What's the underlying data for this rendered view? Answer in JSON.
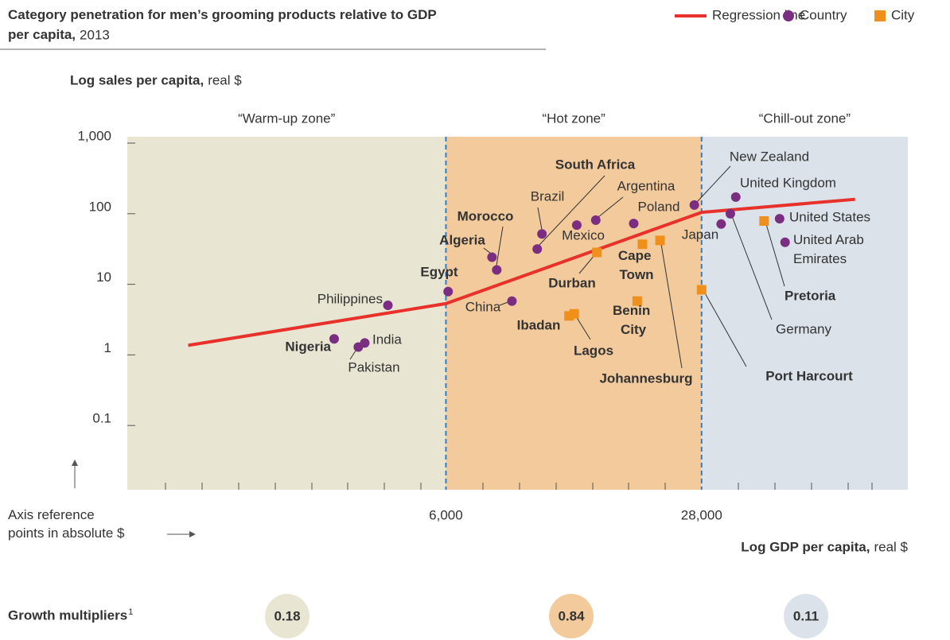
{
  "chart_data": {
    "type": "scatter",
    "title": "Category penetration for men’s grooming products relative to GDP per capita,",
    "subtitle": "2013",
    "y_label": "Log sales per capita,",
    "y_label_unit": "real $",
    "x_label": "Log GDP per capita,",
    "x_label_unit": "real $",
    "x_reference_label": "Axis reference points in absolute $",
    "x_log": true,
    "y_log": true,
    "xlim": [
      880,
      97000
    ],
    "ylim": [
      0.01,
      1000
    ],
    "xticks": [
      {
        "value": 6000,
        "label": "6,000"
      },
      {
        "value": 28000,
        "label": "28,000"
      }
    ],
    "yticks": [
      0.1,
      1,
      10,
      100,
      {
        "value": 1000,
        "label": "1,000"
      }
    ],
    "zones": [
      {
        "label": "“Warm-up zone”",
        "color": "#e9e5d3"
      },
      {
        "label": "“Hot zone”",
        "color": "#f2ca9c"
      },
      {
        "label": "“Chill-out zone”",
        "color": "#dbe2ea"
      }
    ],
    "boundary_color": "#3a7cc3",
    "growth_multipliers": {
      "label": "Growth multipliers",
      "footnote": "1",
      "values": [
        "0.18",
        "0.84",
        "0.11"
      ]
    },
    "series": [
      {
        "name": "Regression line",
        "type": "line",
        "color": "#e8312a",
        "x": [
          1270,
          6000,
          28000,
          70600
        ],
        "values": [
          1.11,
          4.33,
          85,
          130
        ]
      },
      {
        "name": "Country",
        "type": "scatter",
        "marker": "circle",
        "color": "#7b2d82",
        "labels": [
          "Nigeria",
          "Pakistan",
          "India",
          "Philippines",
          "Egypt",
          "China",
          "Algeria",
          "Morocco",
          "Brazil",
          "South Africa",
          "Mexico",
          "Argentina",
          "Poland",
          "New Zealand",
          "Japan",
          "Germany",
          "United Kingdom",
          "United States",
          "United Arab Emirates"
        ],
        "x": [
          3060,
          3540,
          3680,
          4230,
          6080,
          8930,
          7920,
          8150,
          10700,
          10400,
          13200,
          14800,
          18600,
          26800,
          31500,
          33300,
          34400,
          44800,
          46300
        ],
        "values": [
          1.37,
          1.05,
          1.2,
          4.1,
          6.4,
          4.7,
          19.7,
          13,
          42,
          25.7,
          56,
          66,
          59,
          108,
          58,
          81,
          140,
          69,
          32
        ]
      },
      {
        "name": "City",
        "type": "scatter",
        "marker": "square",
        "color": "#f0901c",
        "labels": [
          "Durban",
          "Cape Town",
          "Johannesburg",
          "Benin City",
          "Ibadan",
          "Lagos",
          "Pretoria",
          "Port Harcourt"
        ],
        "x": [
          14900,
          19600,
          21800,
          19000,
          12600,
          13000,
          40800,
          28000
        ],
        "values": [
          23,
          30,
          34,
          4.7,
          2.9,
          3.1,
          64,
          6.8
        ]
      }
    ]
  }
}
